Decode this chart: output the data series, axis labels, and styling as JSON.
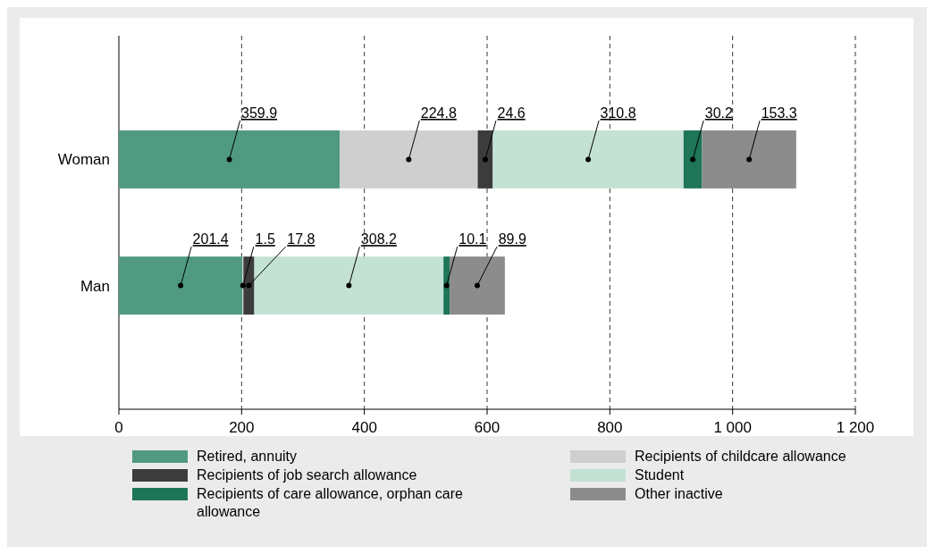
{
  "chart_data": {
    "type": "bar",
    "orientation": "horizontal",
    "stacked": true,
    "categories": [
      "Woman",
      "Man"
    ],
    "series": [
      {
        "name": "Retired, annuity",
        "color": "#4f9a80",
        "values": [
          359.9,
          201.4
        ]
      },
      {
        "name": "Recipients of childcare allowance",
        "color": "#cfcfcf",
        "values": [
          224.8,
          1.5
        ]
      },
      {
        "name": "Recipients of job search allowance",
        "color": "#3c3c3c",
        "values": [
          24.6,
          17.8
        ]
      },
      {
        "name": "Student",
        "color": "#c3e2d3",
        "values": [
          310.8,
          308.2
        ]
      },
      {
        "name": "Recipients of care allowance, orphan care allowance",
        "color": "#1e7557",
        "values": [
          30.2,
          10.1
        ]
      },
      {
        "name": "Other inactive",
        "color": "#8c8c8c",
        "values": [
          153.3,
          89.9
        ]
      }
    ],
    "xlim": [
      0,
      1200
    ],
    "xticks": [
      0,
      200,
      400,
      600,
      800,
      {
        "value": 1000,
        "label": "1 000"
      },
      {
        "value": 1200,
        "label": "1 200"
      }
    ],
    "grid": "x",
    "data_labels": true,
    "legend": "bottom"
  }
}
